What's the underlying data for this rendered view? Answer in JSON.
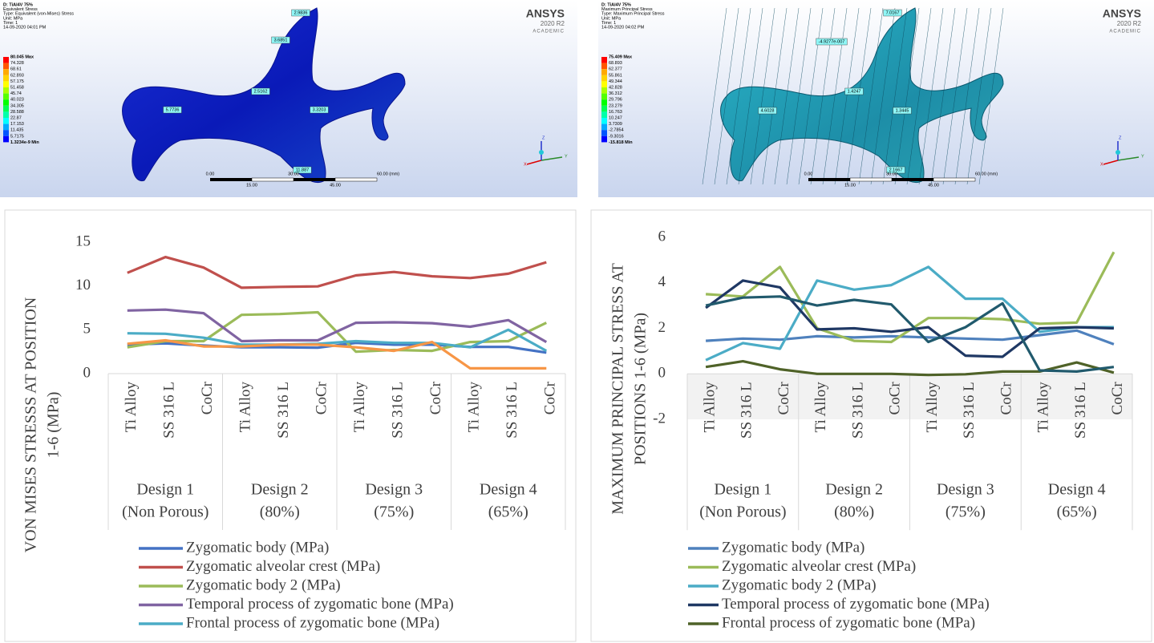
{
  "simulations": [
    {
      "header": [
        "D: TiAl4V 75%",
        "Equivalent Stress",
        "Type: Equivalent (von-Mises) Stress",
        "Unit: MPa",
        "Time: 1",
        "14-09-2020 04:01 PM"
      ],
      "legend": [
        "80.045 Max",
        "74.328",
        "68.61",
        "62.893",
        "57.175",
        "51.458",
        "45.74",
        "40.023",
        "34.305",
        "28.588",
        "22.87",
        "17.153",
        "11.435",
        "5.7175",
        "1.3234e-9 Min"
      ],
      "probes": [
        "2.9836",
        "3.6851",
        "2.5162",
        "5.7736",
        "3.3203",
        "11.887"
      ],
      "brand": [
        "ANSYS",
        "2020 R2",
        "ACADEMIC"
      ],
      "scale_top": [
        "0.00",
        "30.00",
        "60.00 (mm)"
      ],
      "scale_bottom": [
        "15.00",
        "45.00"
      ],
      "axes": [
        "X",
        "Y",
        "Z"
      ]
    },
    {
      "header": [
        "D: TiAl4V 75%",
        "Maximum Principal Stress",
        "Type: Maximum Principal Stress",
        "Unit: MPa",
        "Time: 1",
        "14-09-2020 04:02 PM"
      ],
      "legend": [
        "75.409 Max",
        "68.893",
        "62.377",
        "55.861",
        "49.344",
        "42.828",
        "36.312",
        "29.796",
        "23.279",
        "16.763",
        "10.247",
        "3.7309",
        "-2.7854",
        "-9.3016",
        "-15.818 Min"
      ],
      "probes": [
        "7.0167",
        "-4.9277e-007",
        "1.4247",
        "4.6028",
        "1.3445",
        "2.1667"
      ],
      "brand": [
        "ANSYS",
        "2020 R2",
        "ACADEMIC"
      ],
      "scale_top": [
        "0.00",
        "30.00",
        "60.00 (mm)"
      ],
      "scale_bottom": [
        "15.00",
        "45.00"
      ],
      "axes": [
        "X",
        "Y",
        "Z"
      ]
    }
  ],
  "chart_data": [
    {
      "type": "line",
      "y_label": [
        "VON MISES STRESSS AT POSITION",
        "1-6 (MPa)"
      ],
      "categories": [
        "Ti Alloy",
        "SS 316 L",
        "CoCr",
        "Ti Alloy",
        "SS 316 L",
        "CoCr",
        "Ti Alloy",
        "SS 316 L",
        "CoCr",
        "Ti Alloy",
        "SS 316 L",
        "CoCr"
      ],
      "groups": [
        [
          "Design 1",
          "(Non Porous)"
        ],
        [
          "Design 2",
          "(80%)"
        ],
        [
          "Design 3",
          "(75%)"
        ],
        [
          "Design 4",
          "(65%)"
        ]
      ],
      "ylim": [
        0,
        15
      ],
      "yticks": [
        0,
        5,
        10,
        15
      ],
      "grid": true,
      "series": [
        {
          "name": "Zygomatic body (MPa)",
          "color": "#4472c4",
          "values": [
            3.3,
            3.45,
            3.2,
            3.0,
            3.0,
            2.95,
            3.5,
            3.3,
            3.3,
            3.05,
            3.05,
            2.4
          ]
        },
        {
          "name": "Zygomatic alveolar crest (MPa)",
          "color": "#c0504d",
          "values": [
            11.5,
            13.3,
            12.1,
            9.8,
            9.9,
            9.95,
            11.2,
            11.6,
            11.1,
            10.9,
            11.4,
            12.7
          ]
        },
        {
          "name": "Zygomatic body 2 (MPa)",
          "color": "#9bbb59",
          "values": [
            3.0,
            3.7,
            3.7,
            6.7,
            6.8,
            7.0,
            2.5,
            2.7,
            2.6,
            3.6,
            3.7,
            5.8
          ]
        },
        {
          "name": "Temporal process of zygomatic bone (MPa)",
          "color": "#8064a2",
          "values": [
            7.2,
            7.3,
            6.9,
            3.7,
            3.8,
            3.8,
            5.8,
            5.85,
            5.75,
            5.35,
            6.1,
            3.6
          ]
        },
        {
          "name": "Frontal process of zygomatic bone (MPa)",
          "color": "#4bacc6",
          "values": [
            4.6,
            4.55,
            4.1,
            3.3,
            3.3,
            3.4,
            3.7,
            3.5,
            3.5,
            3.0,
            5.0,
            2.6
          ]
        },
        {
          "color": "#f79646",
          "values": [
            3.4,
            3.8,
            3.1,
            3.1,
            3.3,
            3.3,
            3.0,
            2.6,
            3.6,
            0.6,
            0.6,
            0.6
          ]
        }
      ]
    },
    {
      "type": "line",
      "y_label": [
        "MAXIMUM PRINCIPAL STRESS AT",
        "POSITIONS 1-6 (MPa)"
      ],
      "categories": [
        "Ti Alloy",
        "SS 316 L",
        "CoCr",
        "Ti Alloy",
        "SS 316 L",
        "CoCr",
        "Ti Alloy",
        "SS 316 L",
        "CoCr",
        "Ti Alloy",
        "SS 316 L",
        "CoCr"
      ],
      "groups": [
        [
          "Design 1",
          "(Non Porous)"
        ],
        [
          "Design 2",
          "(80%)"
        ],
        [
          "Design 3",
          "(75%)"
        ],
        [
          "Design 4",
          "(65%)"
        ]
      ],
      "ylim": [
        -2,
        6
      ],
      "yticks": [
        -2,
        0,
        2,
        4,
        6
      ],
      "grid": true,
      "series": [
        {
          "name": "Zygomatic body (MPa)",
          "color": "#4f81bd",
          "values": [
            1.45,
            1.55,
            1.5,
            1.65,
            1.6,
            1.65,
            1.6,
            1.55,
            1.5,
            1.7,
            1.9,
            1.3
          ]
        },
        {
          "name": "Zygomatic alveolar crest (MPa)",
          "color": "#9bbb59",
          "values": [
            3.5,
            3.4,
            4.7,
            2.0,
            1.45,
            1.4,
            2.45,
            2.45,
            2.4,
            2.2,
            2.25,
            5.35
          ]
        },
        {
          "name": "Zygomatic body 2 (MPa)",
          "color": "#4bacc6",
          "values": [
            0.6,
            1.35,
            1.1,
            4.1,
            3.7,
            3.9,
            4.7,
            3.3,
            3.3,
            1.85,
            2.05,
            2.05
          ]
        },
        {
          "name": "Temporal process of zygomatic bone (MPa)",
          "color": "#1f3864",
          "values": [
            2.9,
            4.1,
            3.8,
            1.95,
            2.0,
            1.85,
            2.05,
            0.8,
            0.75,
            2.0,
            2.05,
            2.0
          ]
        },
        {
          "name": "Frontal process of zygomatic bone (MPa)",
          "color": "#4f6228",
          "values": [
            0.3,
            0.55,
            0.2,
            0.0,
            0.0,
            0.0,
            -0.05,
            -0.02,
            0.1,
            0.1,
            0.5,
            0.05
          ]
        },
        {
          "color": "#215a6d",
          "values": [
            3.0,
            3.35,
            3.4,
            3.0,
            3.25,
            3.05,
            1.4,
            2.05,
            3.1,
            0.15,
            0.1,
            0.3
          ]
        }
      ]
    }
  ]
}
